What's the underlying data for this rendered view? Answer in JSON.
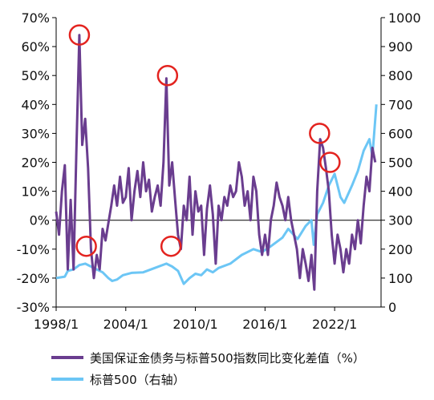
{
  "chart_data": {
    "type": "line",
    "title": "",
    "colors": {
      "spread": "#6A3D8F",
      "sp500": "#6CC6F5",
      "markers": "#E3231F",
      "axis": "#000000"
    },
    "x_ticks": [
      "1998/1",
      "2004/1",
      "2010/1",
      "2016/1",
      "2022/1"
    ],
    "x_range": [
      1998.0,
      2026.0
    ],
    "y_left": {
      "ticks": [
        "70%",
        "60%",
        "50%",
        "40%",
        "30%",
        "20%",
        "10%",
        "0%",
        "-10%",
        "-20%",
        "-30%"
      ],
      "range": [
        -30,
        70
      ],
      "unit": "%"
    },
    "y_right": {
      "ticks": [
        "1000",
        "900",
        "800",
        "700",
        "600",
        "500",
        "400",
        "300",
        "200",
        "100",
        "0"
      ],
      "range": [
        0,
        1000
      ]
    },
    "legend": {
      "placement": "bottom",
      "items": [
        "美国保证金债务与标普500指数同比变化差值（%）",
        "标普500（右轴）"
      ]
    },
    "series": [
      {
        "name": "美国保证金债务与标普500指数同比变化差值（%）",
        "axis": "left",
        "points": [
          [
            1998.0,
            3
          ],
          [
            1998.25,
            -5
          ],
          [
            1998.5,
            10
          ],
          [
            1998.75,
            19
          ],
          [
            1999.0,
            -17
          ],
          [
            1999.25,
            7
          ],
          [
            1999.5,
            -17
          ],
          [
            1999.75,
            25
          ],
          [
            2000.0,
            64
          ],
          [
            2000.25,
            26
          ],
          [
            2000.5,
            35
          ],
          [
            2000.75,
            18
          ],
          [
            2001.0,
            -10
          ],
          [
            2001.25,
            -20
          ],
          [
            2001.5,
            -12
          ],
          [
            2001.75,
            -17
          ],
          [
            2002.0,
            -3
          ],
          [
            2002.25,
            -7
          ],
          [
            2002.5,
            -1
          ],
          [
            2002.75,
            5
          ],
          [
            2003.0,
            12
          ],
          [
            2003.25,
            5
          ],
          [
            2003.5,
            15
          ],
          [
            2003.75,
            6
          ],
          [
            2004.0,
            8
          ],
          [
            2004.25,
            18
          ],
          [
            2004.5,
            0
          ],
          [
            2004.75,
            10
          ],
          [
            2005.0,
            17
          ],
          [
            2005.25,
            8
          ],
          [
            2005.5,
            20
          ],
          [
            2005.75,
            10
          ],
          [
            2006.0,
            14
          ],
          [
            2006.25,
            3
          ],
          [
            2006.5,
            8
          ],
          [
            2006.75,
            12
          ],
          [
            2007.0,
            5
          ],
          [
            2007.25,
            20
          ],
          [
            2007.5,
            49
          ],
          [
            2007.75,
            12
          ],
          [
            2008.0,
            20
          ],
          [
            2008.25,
            7
          ],
          [
            2008.5,
            -5
          ],
          [
            2008.75,
            -10
          ],
          [
            2009.0,
            5
          ],
          [
            2009.25,
            0
          ],
          [
            2009.5,
            15
          ],
          [
            2009.75,
            -5
          ],
          [
            2010.0,
            10
          ],
          [
            2010.25,
            3
          ],
          [
            2010.5,
            5
          ],
          [
            2010.75,
            -12
          ],
          [
            2011.0,
            4
          ],
          [
            2011.25,
            12
          ],
          [
            2011.5,
            2
          ],
          [
            2011.75,
            -15
          ],
          [
            2012.0,
            5
          ],
          [
            2012.25,
            0
          ],
          [
            2012.5,
            8
          ],
          [
            2012.75,
            5
          ],
          [
            2013.0,
            12
          ],
          [
            2013.25,
            8
          ],
          [
            2013.5,
            10
          ],
          [
            2013.75,
            20
          ],
          [
            2014.0,
            15
          ],
          [
            2014.25,
            5
          ],
          [
            2014.5,
            10
          ],
          [
            2014.75,
            0
          ],
          [
            2015.0,
            15
          ],
          [
            2015.25,
            10
          ],
          [
            2015.5,
            -5
          ],
          [
            2015.75,
            -12
          ],
          [
            2016.0,
            -5
          ],
          [
            2016.25,
            -12
          ],
          [
            2016.5,
            0
          ],
          [
            2016.75,
            5
          ],
          [
            2017.0,
            13
          ],
          [
            2017.25,
            8
          ],
          [
            2017.5,
            5
          ],
          [
            2017.75,
            0
          ],
          [
            2018.0,
            8
          ],
          [
            2018.25,
            0
          ],
          [
            2018.5,
            -5
          ],
          [
            2018.75,
            -10
          ],
          [
            2019.0,
            -20
          ],
          [
            2019.25,
            -10
          ],
          [
            2019.5,
            -15
          ],
          [
            2019.75,
            -21
          ],
          [
            2020.0,
            -12
          ],
          [
            2020.25,
            -24
          ],
          [
            2020.5,
            10
          ],
          [
            2020.75,
            28
          ],
          [
            2021.0,
            25
          ],
          [
            2021.25,
            18
          ],
          [
            2021.5,
            10
          ],
          [
            2021.75,
            -5
          ],
          [
            2022.0,
            -15
          ],
          [
            2022.25,
            -5
          ],
          [
            2022.5,
            -10
          ],
          [
            2022.75,
            -18
          ],
          [
            2023.0,
            -10
          ],
          [
            2023.25,
            -15
          ],
          [
            2023.5,
            -5
          ],
          [
            2023.75,
            -10
          ],
          [
            2024.0,
            0
          ],
          [
            2024.25,
            -8
          ],
          [
            2024.5,
            5
          ],
          [
            2024.75,
            15
          ],
          [
            2025.0,
            10
          ],
          [
            2025.25,
            25
          ],
          [
            2025.5,
            20
          ]
        ]
      },
      {
        "name": "标普500（右轴）",
        "axis": "right",
        "points": [
          [
            1998.0,
            100
          ],
          [
            1998.75,
            105
          ],
          [
            1999.0,
            125
          ],
          [
            1999.5,
            130
          ],
          [
            2000.0,
            145
          ],
          [
            2000.5,
            150
          ],
          [
            2001.0,
            140
          ],
          [
            2001.5,
            130
          ],
          [
            2002.0,
            120
          ],
          [
            2002.5,
            100
          ],
          [
            2002.83,
            90
          ],
          [
            2003.25,
            95
          ],
          [
            2003.75,
            110
          ],
          [
            2004.5,
            118
          ],
          [
            2005.5,
            120
          ],
          [
            2006.5,
            135
          ],
          [
            2007.5,
            150
          ],
          [
            2008.0,
            140
          ],
          [
            2008.5,
            125
          ],
          [
            2009.0,
            80
          ],
          [
            2009.5,
            100
          ],
          [
            2010.0,
            115
          ],
          [
            2010.5,
            110
          ],
          [
            2011.0,
            130
          ],
          [
            2011.5,
            120
          ],
          [
            2012.0,
            135
          ],
          [
            2013.0,
            150
          ],
          [
            2014.0,
            180
          ],
          [
            2015.0,
            200
          ],
          [
            2015.75,
            190
          ],
          [
            2016.5,
            210
          ],
          [
            2017.5,
            240
          ],
          [
            2018.0,
            270
          ],
          [
            2018.8,
            235
          ],
          [
            2019.5,
            280
          ],
          [
            2020.0,
            300
          ],
          [
            2020.2,
            215
          ],
          [
            2020.5,
            320
          ],
          [
            2021.0,
            360
          ],
          [
            2021.5,
            420
          ],
          [
            2022.0,
            460
          ],
          [
            2022.5,
            380
          ],
          [
            2022.83,
            360
          ],
          [
            2023.5,
            420
          ],
          [
            2024.0,
            470
          ],
          [
            2024.5,
            540
          ],
          [
            2025.0,
            580
          ],
          [
            2025.25,
            520
          ],
          [
            2025.6,
            700
          ]
        ]
      }
    ],
    "annotations": [
      {
        "type": "circle",
        "x": 2000.0,
        "y": 64
      },
      {
        "type": "circle",
        "x": 2000.6,
        "y": -9
      },
      {
        "type": "circle",
        "x": 2007.6,
        "y": 50
      },
      {
        "type": "circle",
        "x": 2007.9,
        "y": -9
      },
      {
        "type": "circle",
        "x": 2020.7,
        "y": 30
      },
      {
        "type": "circle",
        "x": 2021.6,
        "y": 20
      }
    ]
  }
}
